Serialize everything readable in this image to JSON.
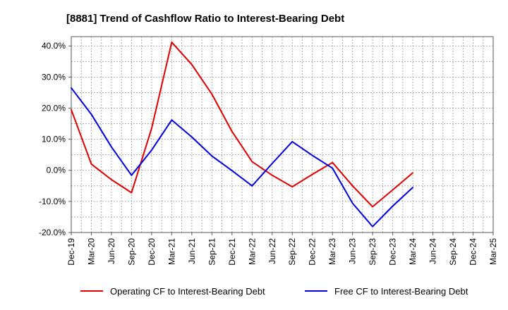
{
  "chart_data": {
    "type": "line",
    "title": "[8881]  Trend of Cashflow Ratio to Interest-Bearing Debt",
    "xlabel": "",
    "ylabel": "",
    "categories": [
      "Dec-19",
      "Mar-20",
      "Jun-20",
      "Sep-20",
      "Dec-20",
      "Mar-21",
      "Jun-21",
      "Sep-21",
      "Dec-21",
      "Mar-22",
      "Jun-22",
      "Sep-22",
      "Dec-22",
      "Mar-23",
      "Jun-23",
      "Sep-23",
      "Dec-23",
      "Mar-24",
      "Jun-24",
      "Sep-24",
      "Dec-24",
      "Mar-25"
    ],
    "ylim": [
      -20,
      43
    ],
    "yticks": [
      -20,
      -10,
      0,
      10,
      20,
      30,
      40
    ],
    "ytick_labels": [
      "-20.0%",
      "-10.0%",
      "0.0%",
      "10.0%",
      "20.0%",
      "30.0%",
      "40.0%"
    ],
    "grid": true,
    "legend_position": "bottom",
    "series": [
      {
        "name": "Operating CF to Interest-Bearing Debt",
        "color": "#e00000",
        "values": [
          19.5,
          2.0,
          -3.0,
          -7.2,
          13.5,
          41.2,
          34.0,
          24.5,
          12.5,
          2.8,
          -1.6,
          -5.3,
          -1.3,
          2.5,
          -5.0,
          -11.7,
          -6.3,
          -0.8,
          null,
          null,
          null,
          null
        ]
      },
      {
        "name": "Free CF to Interest-Bearing Debt",
        "color": "#0000e0",
        "values": [
          26.5,
          18.0,
          7.5,
          -1.6,
          6.5,
          16.2,
          10.7,
          4.6,
          -0.1,
          -5.0,
          2.2,
          9.2,
          4.8,
          0.7,
          -10.6,
          -18.1,
          -11.5,
          -5.5,
          null,
          null,
          null,
          null
        ]
      }
    ]
  }
}
